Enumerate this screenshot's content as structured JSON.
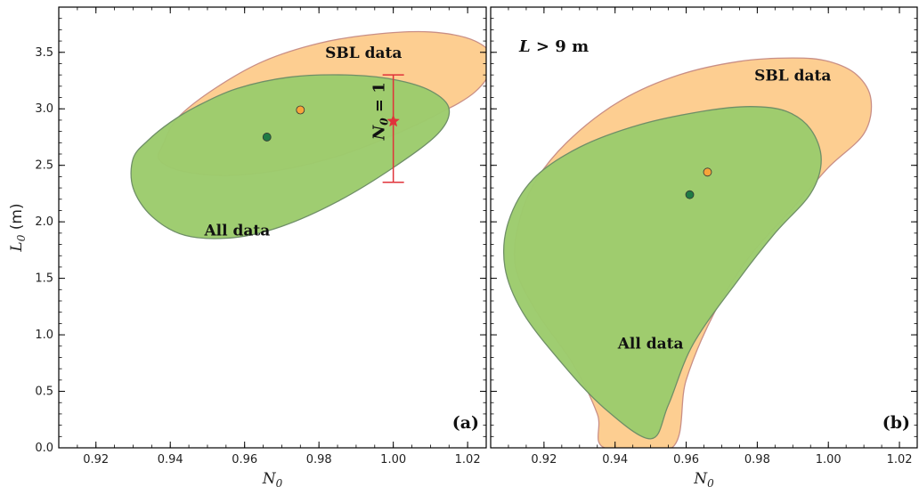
{
  "chart_data": [
    {
      "type": "scatter",
      "panel_label": "(a)",
      "xlabel": "N",
      "xlabel_sub": "0",
      "ylabel": "L",
      "ylabel_sub": "0",
      "ylabel_unit": "(m)",
      "xlim": [
        0.91,
        1.025
      ],
      "ylim": [
        0.0,
        3.9
      ],
      "xticks": [
        0.92,
        0.94,
        0.96,
        0.98,
        1.0,
        1.02
      ],
      "xtick_labels": [
        "0.92",
        "0.94",
        "0.96",
        "0.98",
        "1.00",
        "1.02"
      ],
      "yticks": [
        0.0,
        0.5,
        1.0,
        1.5,
        2.0,
        2.5,
        3.0,
        3.5
      ],
      "ytick_labels": [
        "0.0",
        "0.5",
        "1.0",
        "1.5",
        "2.0",
        "2.5",
        "3.0",
        "3.5"
      ],
      "series": [
        {
          "name": "SBL data",
          "fill": "#fdce91",
          "stroke": "#c98f86",
          "best_fit": [
            0.975,
            2.99
          ],
          "region_points": [
            [
              0.938,
              2.68
            ],
            [
              0.942,
              2.92
            ],
            [
              0.952,
              3.18
            ],
            [
              0.965,
              3.42
            ],
            [
              0.98,
              3.58
            ],
            [
              0.995,
              3.66
            ],
            [
              1.01,
              3.68
            ],
            [
              1.022,
              3.6
            ],
            [
              1.027,
              3.42
            ],
            [
              1.022,
              3.15
            ],
            [
              1.01,
              2.92
            ],
            [
              0.998,
              2.74
            ],
            [
              0.985,
              2.58
            ],
            [
              0.97,
              2.46
            ],
            [
              0.955,
              2.41
            ],
            [
              0.943,
              2.45
            ],
            [
              0.937,
              2.55
            ]
          ]
        },
        {
          "name": "All data",
          "fill": "#9ccb6c",
          "stroke": "#6f8f67",
          "best_fit": [
            0.966,
            2.75
          ],
          "region_points": [
            [
              0.93,
              2.56
            ],
            [
              0.934,
              2.72
            ],
            [
              0.94,
              2.88
            ],
            [
              0.947,
              3.02
            ],
            [
              0.958,
              3.18
            ],
            [
              0.972,
              3.28
            ],
            [
              0.987,
              3.3
            ],
            [
              1.0,
              3.26
            ],
            [
              1.01,
              3.16
            ],
            [
              1.015,
              3.0
            ],
            [
              1.012,
              2.78
            ],
            [
              1.0,
              2.48
            ],
            [
              0.985,
              2.18
            ],
            [
              0.97,
              1.96
            ],
            [
              0.957,
              1.86
            ],
            [
              0.944,
              1.88
            ],
            [
              0.935,
              2.05
            ],
            [
              0.93,
              2.3
            ]
          ]
        }
      ],
      "error_bar": {
        "label": "N",
        "label_sub": "0",
        "label_suffix": " = 1",
        "x": 1.0,
        "center": 2.89,
        "low": 2.35,
        "high": 3.3,
        "color": "#e0333a"
      },
      "annotations": {
        "sbl": "SBL data",
        "all": "All data"
      }
    },
    {
      "type": "scatter",
      "panel_label": "(b)",
      "title_var": "L",
      "title_rest": " > 9 m",
      "xlabel": "N",
      "xlabel_sub": "0",
      "xlim": [
        0.905,
        1.025
      ],
      "ylim": [
        0.0,
        3.9
      ],
      "xticks": [
        0.92,
        0.94,
        0.96,
        0.98,
        1.0,
        1.02
      ],
      "xtick_labels": [
        "0.92",
        "0.94",
        "0.96",
        "0.98",
        "1.00",
        "1.02"
      ],
      "yticks": [
        0.0,
        0.5,
        1.0,
        1.5,
        2.0,
        2.5,
        3.0,
        3.5
      ],
      "series": [
        {
          "name": "SBL data",
          "fill": "#fdce91",
          "stroke": "#c98f86",
          "best_fit": [
            0.966,
            2.44
          ],
          "region_points": [
            [
              0.937,
              0.0
            ],
            [
              0.935,
              0.3
            ],
            [
              0.928,
              0.75
            ],
            [
              0.918,
              1.2
            ],
            [
              0.912,
              1.6
            ],
            [
              0.913,
              2.0
            ],
            [
              0.918,
              2.38
            ],
            [
              0.928,
              2.75
            ],
            [
              0.942,
              3.08
            ],
            [
              0.958,
              3.3
            ],
            [
              0.975,
              3.42
            ],
            [
              0.99,
              3.45
            ],
            [
              1.0,
              3.42
            ],
            [
              1.008,
              3.3
            ],
            [
              1.012,
              3.08
            ],
            [
              1.01,
              2.78
            ],
            [
              1.0,
              2.48
            ],
            [
              0.99,
              2.12
            ],
            [
              0.978,
              1.7
            ],
            [
              0.968,
              1.2
            ],
            [
              0.96,
              0.6
            ],
            [
              0.956,
              0.0
            ]
          ]
        },
        {
          "name": "All data",
          "fill": "#9ccb6c",
          "stroke": "#6f8f67",
          "best_fit": [
            0.961,
            2.24
          ],
          "region_points": [
            [
              0.95,
              0.08
            ],
            [
              0.937,
              0.35
            ],
            [
              0.925,
              0.75
            ],
            [
              0.914,
              1.2
            ],
            [
              0.909,
              1.6
            ],
            [
              0.91,
              2.0
            ],
            [
              0.917,
              2.38
            ],
            [
              0.93,
              2.66
            ],
            [
              0.947,
              2.86
            ],
            [
              0.965,
              2.98
            ],
            [
              0.978,
              3.02
            ],
            [
              0.988,
              2.98
            ],
            [
              0.995,
              2.82
            ],
            [
              0.998,
              2.55
            ],
            [
              0.995,
              2.25
            ],
            [
              0.985,
              1.9
            ],
            [
              0.975,
              1.5
            ],
            [
              0.962,
              0.92
            ],
            [
              0.955,
              0.38
            ]
          ]
        }
      ],
      "annotations": {
        "sbl": "SBL data",
        "all": "All data"
      }
    }
  ]
}
